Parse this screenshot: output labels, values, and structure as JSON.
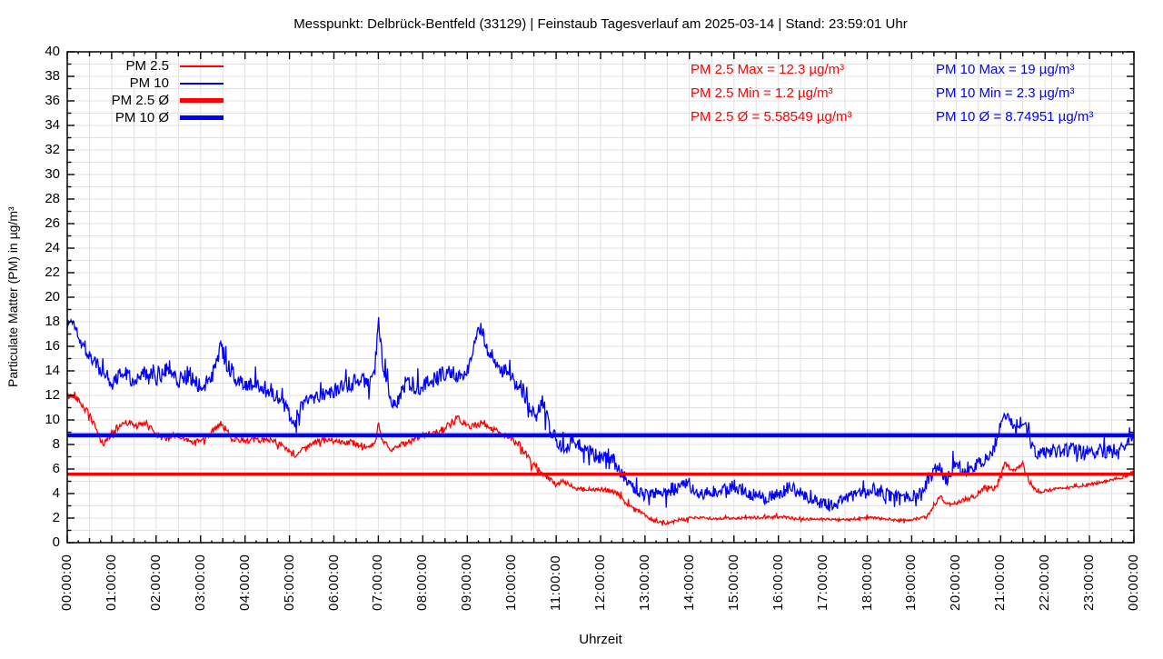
{
  "title": "Messpunkt: Delbrück-Bentfeld (33129) | Feinstaub Tagesverlauf am 2025-03-14 | Stand: 23:59:01 Uhr",
  "axes": {
    "ylabel": "Particulate Matter (PM) in µg/m³",
    "xlabel": "Uhrzeit"
  },
  "legend": [
    {
      "id": "pm25",
      "label": "PM 2.5",
      "color": "#ff0000",
      "style": "thin"
    },
    {
      "id": "pm10",
      "label": "PM 10",
      "color": "#0000ff",
      "style": "thin"
    },
    {
      "id": "pm25-avg",
      "label": "PM 2.5 Ø",
      "color": "#ff0000",
      "style": "thick"
    },
    {
      "id": "pm10-avg",
      "label": "PM 10 Ø",
      "color": "#0000ff",
      "style": "thick"
    }
  ],
  "stats": {
    "pm25": {
      "color": "#ff0000",
      "max": "PM 2.5 Max = 12.3 µg/m³",
      "min": "PM 2.5 Min = 1.2 µg/m³",
      "avg": "PM 2.5 Ø = 5.58549 µg/m³"
    },
    "pm10": {
      "color": "#0000ff",
      "max": "PM 10 Max = 19 µg/m³",
      "min": "PM 10 Min = 2.3 µg/m³",
      "avg": "PM 10 Ø = 8.74951 µg/m³"
    }
  },
  "chart_data": {
    "type": "line",
    "title": "Messpunkt: Delbrück-Bentfeld (33129) | Feinstaub Tagesverlauf am 2025-03-14 | Stand: 23:59:01 Uhr",
    "xlabel": "Uhrzeit",
    "ylabel": "Particulate Matter (PM) in µg/m³",
    "xlim_hours": [
      0,
      24
    ],
    "ylim": [
      0,
      40
    ],
    "ytick_step": 2,
    "ytick_labels": [
      "0",
      "2",
      "4",
      "6",
      "8",
      "10",
      "12",
      "14",
      "16",
      "18",
      "20",
      "22",
      "24",
      "26",
      "28",
      "30",
      "32",
      "34",
      "36",
      "38",
      "40"
    ],
    "xtick_labels": [
      "00:00:00",
      "01:00:00",
      "02:00:00",
      "03:00:00",
      "04:00:00",
      "05:00:00",
      "06:00:00",
      "07:00:00",
      "08:00:00",
      "09:00:00",
      "10:00:00",
      "11:00:00",
      "12:00:00",
      "13:00:00",
      "14:00:00",
      "15:00:00",
      "16:00:00",
      "17:00:00",
      "18:00:00",
      "19:00:00",
      "20:00:00",
      "21:00:00",
      "22:00:00",
      "23:00:00",
      "00:00:00"
    ],
    "grid": {
      "color": "#e0e0e0",
      "x_interval_hours": 0.5,
      "y_interval": 1
    },
    "avg_lines": [
      {
        "series": "pm25",
        "value": 5.58549,
        "color": "#ff0000",
        "width": 3.5
      },
      {
        "series": "pm10",
        "value": 8.74951,
        "color": "#0000ff",
        "width": 4.5
      }
    ],
    "series": [
      {
        "id": "pm25",
        "name": "PM 2.5",
        "color": "#ff0000",
        "width": 1.3,
        "stats": {
          "max": 12.3,
          "min": 1.2,
          "avg": 5.58549
        },
        "keyframes": [
          [
            0.0,
            11.9,
            0.25
          ],
          [
            0.17,
            12.0,
            0.25
          ],
          [
            0.5,
            10.4,
            0.3
          ],
          [
            0.8,
            8.0,
            0.25
          ],
          [
            1.0,
            8.9,
            0.3
          ],
          [
            1.3,
            9.9,
            0.3
          ],
          [
            1.55,
            9.5,
            0.25
          ],
          [
            1.8,
            9.7,
            0.25
          ],
          [
            2.1,
            8.5,
            0.25
          ],
          [
            2.45,
            8.7,
            0.3
          ],
          [
            2.8,
            8.2,
            0.2
          ],
          [
            3.1,
            8.4,
            0.2
          ],
          [
            3.45,
            9.8,
            0.3
          ],
          [
            3.7,
            8.5,
            0.25
          ],
          [
            4.1,
            8.3,
            0.22
          ],
          [
            4.6,
            8.4,
            0.22
          ],
          [
            4.85,
            7.9,
            0.2
          ],
          [
            5.1,
            7.0,
            0.2
          ],
          [
            5.4,
            7.9,
            0.22
          ],
          [
            5.7,
            8.3,
            0.25
          ],
          [
            6.1,
            8.3,
            0.25
          ],
          [
            6.5,
            8.1,
            0.25
          ],
          [
            6.8,
            7.7,
            0.2
          ],
          [
            6.95,
            8.3,
            0.25
          ],
          [
            7.0,
            9.8,
            0.15
          ],
          [
            7.08,
            8.3,
            0.2
          ],
          [
            7.3,
            7.6,
            0.2
          ],
          [
            7.6,
            8.1,
            0.25
          ],
          [
            8.0,
            8.7,
            0.25
          ],
          [
            8.4,
            9.1,
            0.3
          ],
          [
            8.8,
            10.1,
            0.3
          ],
          [
            9.05,
            9.4,
            0.25
          ],
          [
            9.35,
            9.8,
            0.3
          ],
          [
            9.6,
            9.2,
            0.25
          ],
          [
            9.9,
            8.7,
            0.25
          ],
          [
            10.2,
            7.8,
            0.3
          ],
          [
            10.5,
            6.4,
            0.3
          ],
          [
            10.8,
            5.3,
            0.25
          ],
          [
            11.0,
            4.7,
            0.2
          ],
          [
            11.15,
            5.0,
            0.2
          ],
          [
            11.45,
            4.4,
            0.15
          ],
          [
            11.8,
            4.35,
            0.15
          ],
          [
            12.15,
            4.3,
            0.18
          ],
          [
            12.35,
            4.1,
            0.2
          ],
          [
            12.55,
            3.3,
            0.2
          ],
          [
            12.8,
            2.7,
            0.15
          ],
          [
            13.1,
            2.0,
            0.15
          ],
          [
            13.4,
            1.5,
            0.18
          ],
          [
            13.7,
            1.8,
            0.12
          ],
          [
            14.1,
            2.05,
            0.12
          ],
          [
            14.6,
            1.95,
            0.1
          ],
          [
            15.1,
            2.0,
            0.1
          ],
          [
            15.6,
            2.05,
            0.12
          ],
          [
            16.1,
            2.1,
            0.12
          ],
          [
            16.5,
            1.95,
            0.1
          ],
          [
            17.0,
            1.9,
            0.1
          ],
          [
            17.5,
            1.85,
            0.1
          ],
          [
            18.0,
            2.05,
            0.1
          ],
          [
            18.4,
            1.95,
            0.1
          ],
          [
            18.7,
            1.8,
            0.12
          ],
          [
            19.0,
            1.9,
            0.1
          ],
          [
            19.35,
            2.1,
            0.15
          ],
          [
            19.5,
            3.1,
            0.2
          ],
          [
            19.65,
            3.7,
            0.2
          ],
          [
            19.85,
            3.0,
            0.18
          ],
          [
            20.1,
            3.4,
            0.18
          ],
          [
            20.4,
            3.7,
            0.18
          ],
          [
            20.65,
            4.5,
            0.2
          ],
          [
            20.85,
            4.4,
            0.2
          ],
          [
            21.0,
            5.4,
            0.25
          ],
          [
            21.1,
            6.5,
            0.2
          ],
          [
            21.3,
            5.8,
            0.2
          ],
          [
            21.5,
            6.4,
            0.22
          ],
          [
            21.65,
            4.9,
            0.2
          ],
          [
            21.85,
            4.1,
            0.15
          ],
          [
            22.1,
            4.3,
            0.12
          ],
          [
            22.4,
            4.45,
            0.12
          ],
          [
            22.8,
            4.6,
            0.12
          ],
          [
            23.1,
            4.8,
            0.12
          ],
          [
            23.4,
            5.0,
            0.12
          ],
          [
            23.7,
            5.3,
            0.14
          ],
          [
            23.92,
            5.6,
            0.14
          ],
          [
            24.0,
            5.8,
            0.1
          ]
        ]
      },
      {
        "id": "pm10",
        "name": "PM 10",
        "color": "#0000ff",
        "width": 1.3,
        "stats": {
          "max": 19,
          "min": 2.3,
          "avg": 8.74951
        },
        "keyframes": [
          [
            0.0,
            17.8,
            0.5
          ],
          [
            0.12,
            18.1,
            0.45
          ],
          [
            0.35,
            16.2,
            0.6
          ],
          [
            0.6,
            14.7,
            0.7
          ],
          [
            0.9,
            13.4,
            0.7
          ],
          [
            1.05,
            12.9,
            0.7
          ],
          [
            1.2,
            14.2,
            0.7
          ],
          [
            1.45,
            13.4,
            0.7
          ],
          [
            1.7,
            13.7,
            0.7
          ],
          [
            2.0,
            13.4,
            0.8
          ],
          [
            2.25,
            14.5,
            0.9
          ],
          [
            2.5,
            13.3,
            0.7
          ],
          [
            2.75,
            13.7,
            0.8
          ],
          [
            3.0,
            12.7,
            0.6
          ],
          [
            3.25,
            13.4,
            0.7
          ],
          [
            3.45,
            15.9,
            0.6
          ],
          [
            3.6,
            14.6,
            0.8
          ],
          [
            3.85,
            13.0,
            0.6
          ],
          [
            4.15,
            12.9,
            0.7
          ],
          [
            4.5,
            12.7,
            0.7
          ],
          [
            4.8,
            11.7,
            0.6
          ],
          [
            5.08,
            9.9,
            0.6
          ],
          [
            5.3,
            11.2,
            0.6
          ],
          [
            5.55,
            11.9,
            0.6
          ],
          [
            5.85,
            12.1,
            0.6
          ],
          [
            6.15,
            12.5,
            0.7
          ],
          [
            6.45,
            13.1,
            0.7
          ],
          [
            6.75,
            13.1,
            0.7
          ],
          [
            6.92,
            13.9,
            0.8
          ],
          [
            7.0,
            18.3,
            0.7
          ],
          [
            7.1,
            14.2,
            0.8
          ],
          [
            7.35,
            11.1,
            0.6
          ],
          [
            7.6,
            12.9,
            0.7
          ],
          [
            7.9,
            12.7,
            0.7
          ],
          [
            8.2,
            13.2,
            0.7
          ],
          [
            8.5,
            13.8,
            0.7
          ],
          [
            8.8,
            13.6,
            0.7
          ],
          [
            9.0,
            14.2,
            0.7
          ],
          [
            9.2,
            16.3,
            0.8
          ],
          [
            9.32,
            17.7,
            0.7
          ],
          [
            9.45,
            15.9,
            0.8
          ],
          [
            9.65,
            14.3,
            0.7
          ],
          [
            9.9,
            13.9,
            0.6
          ],
          [
            10.15,
            12.9,
            0.7
          ],
          [
            10.35,
            11.9,
            0.8
          ],
          [
            10.55,
            10.1,
            0.7
          ],
          [
            10.7,
            11.6,
            0.8
          ],
          [
            10.9,
            8.9,
            0.6
          ],
          [
            11.1,
            7.9,
            0.6
          ],
          [
            11.4,
            8.2,
            0.7
          ],
          [
            11.7,
            7.6,
            0.6
          ],
          [
            12.0,
            6.9,
            0.6
          ],
          [
            12.2,
            7.1,
            0.7
          ],
          [
            12.45,
            5.9,
            0.6
          ],
          [
            12.7,
            4.5,
            0.5
          ],
          [
            13.0,
            3.9,
            0.5
          ],
          [
            13.3,
            4.0,
            0.5
          ],
          [
            13.6,
            4.3,
            0.6
          ],
          [
            13.95,
            4.8,
            0.7
          ],
          [
            14.2,
            4.0,
            0.5
          ],
          [
            14.5,
            4.1,
            0.5
          ],
          [
            14.8,
            4.4,
            0.6
          ],
          [
            15.1,
            4.6,
            0.6
          ],
          [
            15.4,
            3.9,
            0.5
          ],
          [
            15.7,
            3.6,
            0.5
          ],
          [
            16.0,
            4.1,
            0.6
          ],
          [
            16.3,
            4.5,
            0.6
          ],
          [
            16.6,
            3.8,
            0.5
          ],
          [
            16.9,
            3.3,
            0.5
          ],
          [
            17.25,
            3.0,
            0.6
          ],
          [
            17.55,
            3.7,
            0.5
          ],
          [
            17.85,
            3.9,
            0.5
          ],
          [
            18.1,
            4.4,
            0.6
          ],
          [
            18.35,
            4.1,
            0.6
          ],
          [
            18.6,
            3.7,
            0.5
          ],
          [
            18.9,
            3.8,
            0.5
          ],
          [
            19.2,
            4.0,
            0.5
          ],
          [
            19.45,
            5.7,
            0.7
          ],
          [
            19.6,
            6.5,
            0.6
          ],
          [
            19.8,
            5.1,
            0.6
          ],
          [
            19.95,
            6.6,
            0.6
          ],
          [
            20.2,
            5.9,
            0.6
          ],
          [
            20.4,
            6.3,
            0.6
          ],
          [
            20.6,
            6.5,
            0.6
          ],
          [
            20.85,
            7.7,
            0.6
          ],
          [
            21.0,
            9.5,
            0.5
          ],
          [
            21.12,
            10.5,
            0.4
          ],
          [
            21.3,
            9.4,
            0.5
          ],
          [
            21.5,
            10.0,
            0.4
          ],
          [
            21.65,
            8.5,
            0.6
          ],
          [
            21.8,
            7.2,
            0.5
          ],
          [
            22.0,
            7.5,
            0.6
          ],
          [
            22.3,
            7.4,
            0.6
          ],
          [
            22.6,
            7.6,
            0.6
          ],
          [
            22.9,
            7.3,
            0.6
          ],
          [
            23.2,
            7.5,
            0.6
          ],
          [
            23.5,
            7.4,
            0.6
          ],
          [
            23.75,
            7.9,
            0.5
          ],
          [
            23.9,
            8.4,
            0.4
          ],
          [
            24.0,
            8.8,
            0.3
          ]
        ]
      }
    ]
  }
}
